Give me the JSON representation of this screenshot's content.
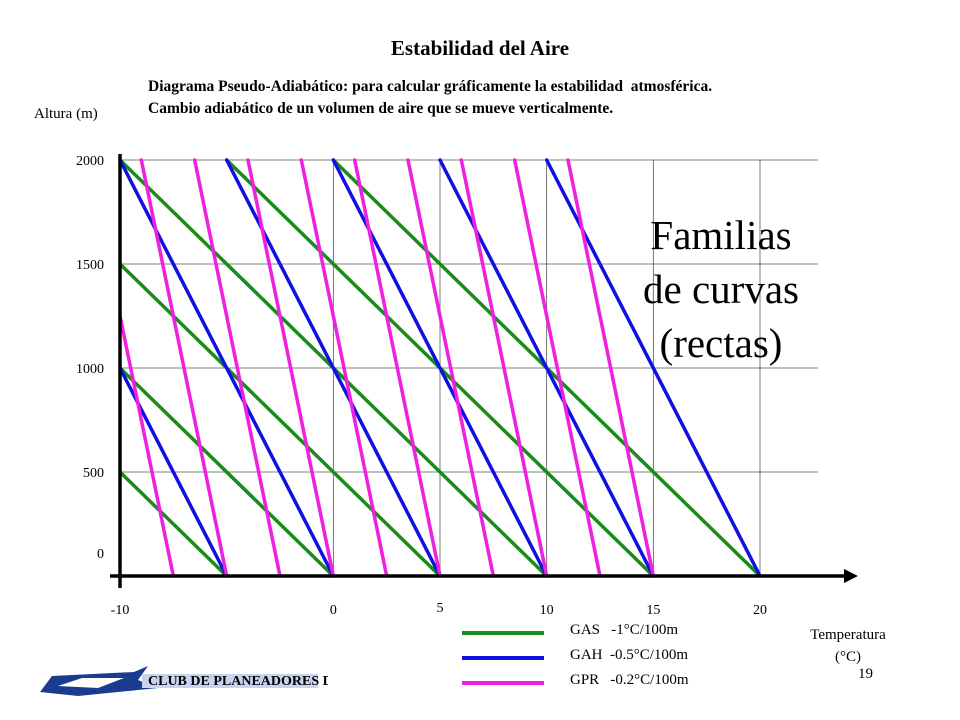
{
  "title": "Estabilidad del Aire",
  "subtitle": "Diagrama Pseudo-Adiabático: para calcular gráficamente la estabilidad  atmosférica.\nCambio adiabático de un volumen de aire que se mueve verticalmente.",
  "overlay_text": "Familias\nde curvas\n(rectas)",
  "page_number": "19",
  "logo": {
    "text": "CLUB DE PLANEADORES DE SANTIAGO",
    "icon": "glider-logo-icon",
    "color": "#1a3c8f"
  },
  "chart_data": {
    "type": "line",
    "xlabel": "Temperatura\n(°C)",
    "ylabel": "Altura (m)",
    "xlim": [
      -10,
      22
    ],
    "ylim": [
      0,
      2000
    ],
    "x_ticks": [
      "-10",
      "0",
      "5",
      "10",
      "15",
      "20"
    ],
    "x_tick_values": [
      -10,
      0,
      5,
      10,
      15,
      20
    ],
    "y_ticks": [
      "0",
      "500",
      "1000",
      "1500",
      "2000"
    ],
    "y_tick_values": [
      0,
      500,
      1000,
      1500,
      2000
    ],
    "grid": true,
    "legend_position": "bottom-center",
    "series": [
      {
        "name": "GAS   -1°C/100m",
        "lapse_rate_c_per_100m": 1.0,
        "color": "#1a8c1a",
        "surface_temperatures": [
          -10,
          -5,
          0,
          5,
          10,
          15,
          20
        ]
      },
      {
        "name": "GAH  -0.5°C/100m",
        "lapse_rate_c_per_100m": 0.5,
        "color": "#1010e0",
        "surface_temperatures": [
          -5,
          0,
          5,
          10,
          15,
          20
        ]
      },
      {
        "name": "GPR   -0.2°C/100m",
        "lapse_rate_c_per_100m": 0.2,
        "color": "#f020e0",
        "surface_temperatures": [
          -7.5,
          -5,
          -2.5,
          0,
          2.5,
          5,
          7.5,
          10,
          12.5,
          15
        ]
      }
    ]
  }
}
